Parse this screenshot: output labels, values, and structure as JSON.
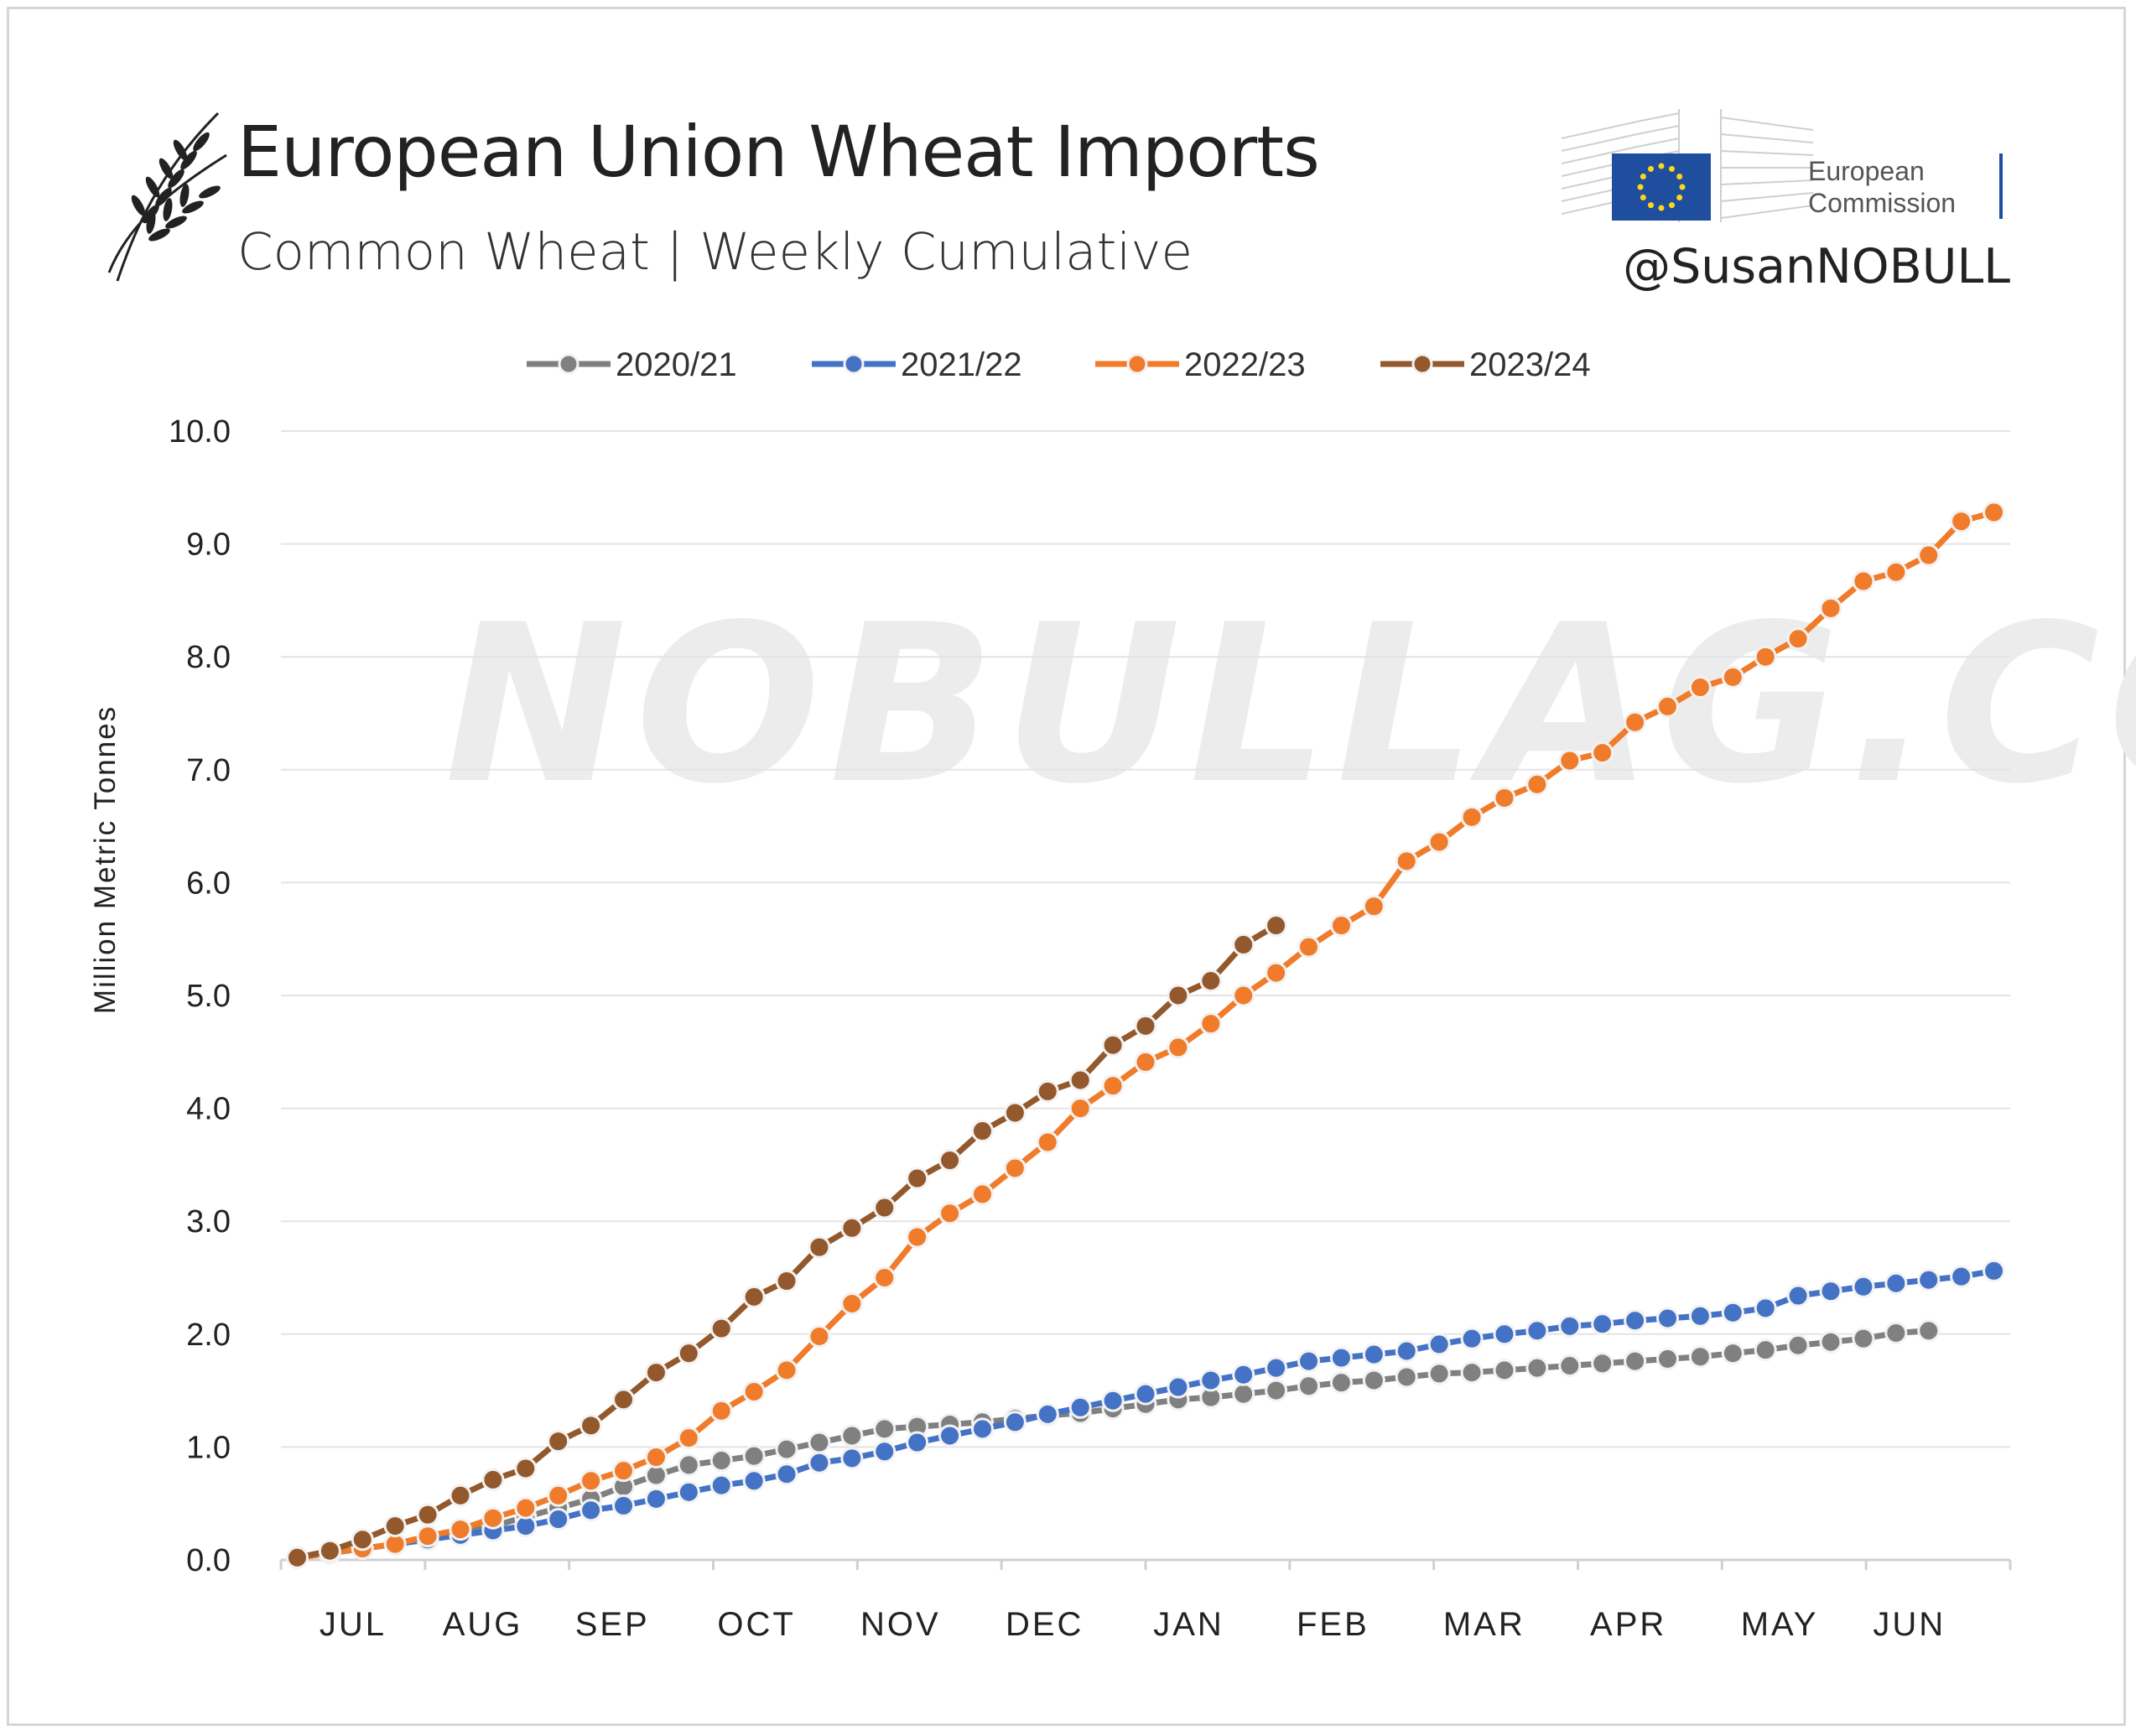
{
  "header": {
    "title": "European Union Wheat Imports",
    "subtitle": "Common Wheat | Weekly Cumulative",
    "handle": "@SusanNOBULL",
    "logo_text_line1": "European",
    "logo_text_line2": "Commission",
    "watermark": "NOBULLAG.COM"
  },
  "colors": {
    "2020/21": "#808080",
    "2021/22": "#4472c4",
    "2022/23": "#f07c2b",
    "2023/24": "#93592c",
    "eu_blue": "#1f4e9e",
    "eu_star": "#ffd617"
  },
  "chart_data": {
    "type": "line",
    "title": "European Union Wheat Imports",
    "subtitle": "Common Wheat | Weekly Cumulative",
    "xlabel": "",
    "ylabel": "Million Metric Tonnes",
    "ylim": [
      0,
      10
    ],
    "yticks": [
      "0.0",
      "1.0",
      "2.0",
      "3.0",
      "4.0",
      "5.0",
      "6.0",
      "7.0",
      "8.0",
      "9.0",
      "10.0"
    ],
    "x_month_labels": [
      "JUL",
      "AUG",
      "SEP",
      "OCT",
      "NOV",
      "DEC",
      "JAN",
      "FEB",
      "MAR",
      "APR",
      "MAY",
      "JUN"
    ],
    "weeks_total": 52,
    "grid": true,
    "legend_position": "top",
    "series": [
      {
        "name": "2020/21",
        "values": [
          0.02,
          0.06,
          0.1,
          0.14,
          0.18,
          0.24,
          0.3,
          0.38,
          0.46,
          0.54,
          0.65,
          0.75,
          0.84,
          0.88,
          0.92,
          0.98,
          1.04,
          1.1,
          1.16,
          1.18,
          1.2,
          1.22,
          1.25,
          1.28,
          1.3,
          1.34,
          1.38,
          1.42,
          1.44,
          1.47,
          1.5,
          1.54,
          1.57,
          1.59,
          1.62,
          1.65,
          1.66,
          1.68,
          1.7,
          1.72,
          1.74,
          1.76,
          1.78,
          1.8,
          1.83,
          1.86,
          1.9,
          1.93,
          1.96,
          2.01,
          2.03
        ]
      },
      {
        "name": "2021/22",
        "values": [
          0.02,
          0.06,
          0.1,
          0.14,
          0.18,
          0.22,
          0.26,
          0.3,
          0.36,
          0.44,
          0.48,
          0.54,
          0.6,
          0.66,
          0.7,
          0.76,
          0.86,
          0.9,
          0.96,
          1.04,
          1.1,
          1.16,
          1.22,
          1.29,
          1.35,
          1.41,
          1.47,
          1.53,
          1.59,
          1.64,
          1.7,
          1.76,
          1.79,
          1.82,
          1.85,
          1.91,
          1.96,
          2.0,
          2.03,
          2.07,
          2.09,
          2.12,
          2.14,
          2.16,
          2.19,
          2.23,
          2.34,
          2.38,
          2.42,
          2.45,
          2.48,
          2.51,
          2.56
        ]
      },
      {
        "name": "2022/23",
        "values": [
          0.02,
          0.06,
          0.1,
          0.14,
          0.21,
          0.27,
          0.37,
          0.46,
          0.57,
          0.7,
          0.79,
          0.91,
          1.08,
          1.32,
          1.49,
          1.68,
          1.98,
          2.27,
          2.5,
          2.86,
          3.07,
          3.24,
          3.47,
          3.7,
          4.0,
          4.2,
          4.41,
          4.54,
          4.75,
          5.0,
          5.2,
          5.43,
          5.62,
          5.79,
          6.19,
          6.36,
          6.58,
          6.75,
          6.87,
          7.08,
          7.15,
          7.42,
          7.56,
          7.73,
          7.82,
          8.0,
          8.16,
          8.43,
          8.67,
          8.75,
          8.9,
          9.2,
          9.28
        ]
      },
      {
        "name": "2023/24",
        "values": [
          0.02,
          0.08,
          0.18,
          0.3,
          0.4,
          0.57,
          0.71,
          0.81,
          1.05,
          1.19,
          1.42,
          1.66,
          1.83,
          2.05,
          2.33,
          2.47,
          2.77,
          2.94,
          3.12,
          3.38,
          3.54,
          3.8,
          3.96,
          4.15,
          4.25,
          4.56,
          4.73,
          5.0,
          5.13,
          5.45,
          5.62
        ]
      }
    ]
  }
}
